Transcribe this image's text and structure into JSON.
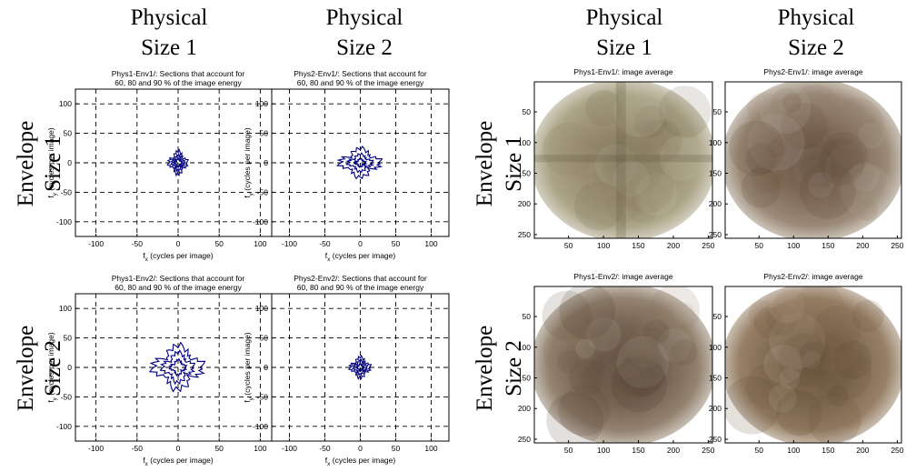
{
  "headers": {
    "columns": [
      {
        "line1": "Physical",
        "line2": "Size 1"
      },
      {
        "line1": "Physical",
        "line2": "Size 2"
      },
      {
        "line1": "Physical",
        "line2": "Size 1"
      },
      {
        "line1": "Physical",
        "line2": "Size 2"
      }
    ],
    "rows": [
      {
        "line1": "Envelope",
        "line2": "Size 1"
      },
      {
        "line1": "Envelope",
        "line2": "Size 2"
      },
      {
        "line1": "Envelope",
        "line2": "Size 1"
      },
      {
        "line1": "Envelope",
        "line2": "Size 2"
      }
    ]
  },
  "chart_data": [
    {
      "type": "contour",
      "title": [
        "Phys1-Env1/: Sections that account for",
        "60, 80 and 90 % of the image energy"
      ],
      "xlabel": {
        "main": "f",
        "sub": "x",
        "rest": " (cycles per image)"
      },
      "ylabel": {
        "main": "f",
        "sub": "y",
        "rest": " (cycles per image)"
      },
      "xlim": [
        -125,
        125
      ],
      "ylim": [
        -125,
        125
      ],
      "xticks": [
        -100,
        -50,
        0,
        50,
        100
      ],
      "yticks": [
        -100,
        -50,
        0,
        50,
        100
      ],
      "grid": true,
      "color": "#000080",
      "contour_extents": [
        {
          "level": 90,
          "x": 12,
          "y": 20
        },
        {
          "level": 80,
          "x": 8,
          "y": 13
        },
        {
          "level": 60,
          "x": 5,
          "y": 7
        }
      ]
    },
    {
      "type": "contour",
      "title": [
        "Phys2-Env1/: Sections that account for",
        "60, 80 and 90 % of the image energy"
      ],
      "xlabel": {
        "main": "f",
        "sub": "x",
        "rest": " (cycles per image)"
      },
      "ylabel": {
        "main": "f",
        "sub": "y",
        "rest": " (cycles per image)"
      },
      "xlim": [
        -125,
        125
      ],
      "ylim": [
        -125,
        125
      ],
      "xticks": [
        -100,
        -50,
        0,
        50,
        100
      ],
      "yticks": [
        -100,
        -50,
        0,
        50,
        100
      ],
      "grid": true,
      "color": "#000080",
      "contour_extents": [
        {
          "level": 90,
          "x": 30,
          "y": 25
        },
        {
          "level": 80,
          "x": 18,
          "y": 15
        },
        {
          "level": 60,
          "x": 8,
          "y": 7
        }
      ]
    },
    {
      "type": "contour",
      "title": [
        "Phys1-Env2/: Sections that account for",
        "60, 80 and 90 % of the image energy"
      ],
      "xlabel": {
        "main": "f",
        "sub": "x",
        "rest": " (cycles per image)"
      },
      "ylabel": {
        "main": "f",
        "sub": "y",
        "rest": " (cycles per image)"
      },
      "xlim": [
        -125,
        125
      ],
      "ylim": [
        -125,
        125
      ],
      "xticks": [
        -100,
        -50,
        0,
        50,
        100
      ],
      "yticks": [
        -100,
        -50,
        0,
        50,
        100
      ],
      "grid": true,
      "color": "#000080",
      "contour_extents": [
        {
          "level": 90,
          "x": 32,
          "y": 38
        },
        {
          "level": 80,
          "x": 20,
          "y": 26
        },
        {
          "level": 60,
          "x": 10,
          "y": 13
        }
      ]
    },
    {
      "type": "contour",
      "title": [
        "Phys2-Env2/: Sections that account for",
        "60, 80 and 90 % of the image energy"
      ],
      "xlabel": {
        "main": "f",
        "sub": "x",
        "rest": " (cycles per image)"
      },
      "ylabel": {
        "main": "f",
        "sub": "y",
        "rest": " (cycles per image)"
      },
      "xlim": [
        -125,
        125
      ],
      "ylim": [
        -125,
        125
      ],
      "xticks": [
        -100,
        -50,
        0,
        50,
        100
      ],
      "yticks": [
        -100,
        -50,
        0,
        50,
        100
      ],
      "grid": true,
      "color": "#000080",
      "contour_extents": [
        {
          "level": 90,
          "x": 15,
          "y": 18
        },
        {
          "level": 80,
          "x": 10,
          "y": 12
        },
        {
          "level": 60,
          "x": 5,
          "y": 6
        }
      ]
    },
    {
      "type": "heatmap",
      "title": [
        "Phys1-Env1/: image average"
      ],
      "xlim": [
        1,
        256
      ],
      "ylim": [
        256,
        1
      ],
      "xticks": [
        50,
        100,
        150,
        200,
        250
      ],
      "yticks": [
        50,
        100,
        150,
        200,
        250
      ],
      "palette": [
        "#8a7a5c",
        "#a29a7a",
        "#c9c6b6",
        "#6e6548"
      ]
    },
    {
      "type": "heatmap",
      "title": [
        "Phys2-Env1/: image average"
      ],
      "xlim": [
        1,
        256
      ],
      "ylim": [
        256,
        1
      ],
      "xticks": [
        50,
        100,
        150,
        200,
        250
      ],
      "yticks": [
        50,
        100,
        150,
        200,
        250
      ],
      "palette": [
        "#6e5440",
        "#8f7d68",
        "#bdb4aa",
        "#5a4434"
      ]
    },
    {
      "type": "heatmap",
      "title": [
        "Phys1-Env2/: image average"
      ],
      "xlim": [
        1,
        256
      ],
      "ylim": [
        256,
        1
      ],
      "xticks": [
        50,
        100,
        150,
        200,
        250
      ],
      "yticks": [
        50,
        100,
        150,
        200,
        250
      ],
      "palette": [
        "#5e4a38",
        "#86745f",
        "#bcb3a8",
        "#4d3a2c"
      ]
    },
    {
      "type": "heatmap",
      "title": [
        "Phys2-Env2/: image average"
      ],
      "xlim": [
        1,
        256
      ],
      "ylim": [
        256,
        1
      ],
      "xticks": [
        50,
        100,
        150,
        200,
        250
      ],
      "yticks": [
        50,
        100,
        150,
        200,
        250
      ],
      "palette": [
        "#6a5238",
        "#8c7256",
        "#c4b9a8",
        "#5a432d"
      ]
    }
  ]
}
